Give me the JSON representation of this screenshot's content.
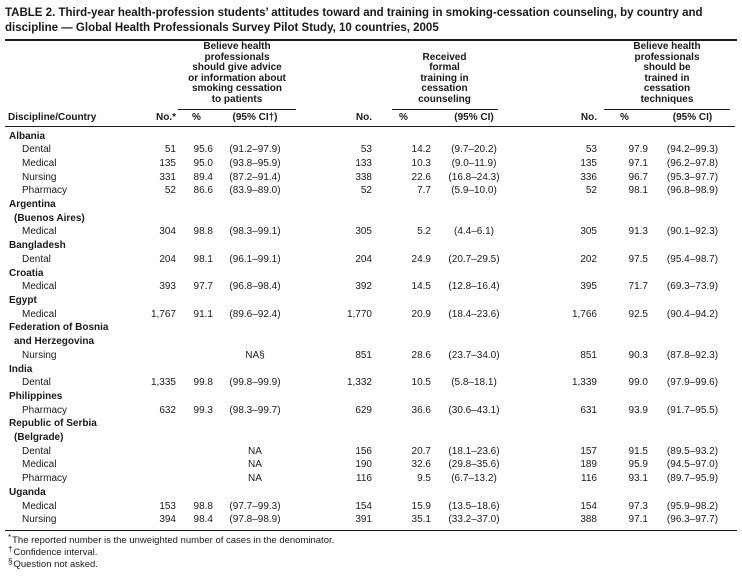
{
  "title": "TABLE 2. Third-year health-profession students’ attitudes toward and training in smoking-cessation counseling, by country and\ndiscipline — Global Health Professionals Survey Pilot Study, 10 countries, 2005",
  "header": {
    "groups": [
      {
        "label": "Believe health\nprofessionals\nshould give advice\nor information about\nsmoking cessation\nto patients"
      },
      {
        "label": "Received\nformal\ntraining in\ncessation\ncounseling"
      },
      {
        "label": "Believe health\nprofessionals\nshould be\ntrained in\ncessation\ntechniques"
      }
    ],
    "labels": {
      "discipline_country": "Discipline/Country",
      "no_star": "No.*",
      "no": "No.",
      "pct": "%",
      "ci_dagger": "(95% CI†)",
      "ci": "(95% CI)"
    }
  },
  "rows": [
    {
      "type": "country",
      "label": "Albania"
    },
    {
      "type": "data",
      "label": "Dental",
      "cells": [
        "51",
        "95.6",
        "(91.2–97.9)",
        "53",
        "14.2",
        "(9.7–20.2)",
        "53",
        "97.9",
        "(94.2–99.3)"
      ]
    },
    {
      "type": "data",
      "label": "Medical",
      "cells": [
        "135",
        "95.0",
        "(93.8–95.9)",
        "133",
        "10.3",
        "(9.0–11.9)",
        "135",
        "97.1",
        "(96.2–97.8)"
      ]
    },
    {
      "type": "data",
      "label": "Nursing",
      "cells": [
        "331",
        "89.4",
        "(87.2–91.4)",
        "338",
        "22.6",
        "(16.8–24.3)",
        "336",
        "96.7",
        "(95.3–97.7)"
      ]
    },
    {
      "type": "data",
      "label": "Pharmacy",
      "cells": [
        "52",
        "86.6",
        "(83.9–89.0)",
        "52",
        "7.7",
        "(5.9–10.0)",
        "52",
        "98.1",
        "(96.8–98.9)"
      ]
    },
    {
      "type": "country",
      "label": "Argentina"
    },
    {
      "type": "country2",
      "label": "(Buenos Aires)"
    },
    {
      "type": "data",
      "label": "Medical",
      "cells": [
        "304",
        "98.8",
        "(98.3–99.1)",
        "305",
        "5.2",
        "(4.4–6.1)",
        "305",
        "91.3",
        "(90.1–92.3)"
      ]
    },
    {
      "type": "country",
      "label": "Bangladesh"
    },
    {
      "type": "data",
      "label": "Dental",
      "cells": [
        "204",
        "98.1",
        "(96.1–99.1)",
        "204",
        "24.9",
        "(20.7–29.5)",
        "202",
        "97.5",
        "(95.4–98.7)"
      ]
    },
    {
      "type": "country",
      "label": "Croatia"
    },
    {
      "type": "data",
      "label": "Medical",
      "cells": [
        "393",
        "97.7",
        "(96.8–98.4)",
        "392",
        "14.5",
        "(12.8–16.4)",
        "395",
        "71.7",
        "(69.3–73.9)"
      ]
    },
    {
      "type": "country",
      "label": "Egypt"
    },
    {
      "type": "data",
      "label": "Medical",
      "cells": [
        "1,767",
        "91.1",
        "(89.6–92.4)",
        "1,770",
        "20.9",
        "(18.4–23.6)",
        "1,766",
        "92.5",
        "(90.4–94.2)"
      ]
    },
    {
      "type": "country",
      "label": "Federation of Bosnia"
    },
    {
      "type": "country2",
      "label": "and Herzegovina"
    },
    {
      "type": "data",
      "label": "Nursing",
      "cells": [
        "",
        "",
        "NA§",
        "851",
        "28.6",
        "(23.7–34.0)",
        "851",
        "90.3",
        "(87.8–92.3)"
      ]
    },
    {
      "type": "country",
      "label": "India"
    },
    {
      "type": "data",
      "label": "Dental",
      "cells": [
        "1,335",
        "99.8",
        "(99.8–99.9)",
        "1,332",
        "10.5",
        "(5.8–18.1)",
        "1,339",
        "99.0",
        "(97.9–99.6)"
      ]
    },
    {
      "type": "country",
      "label": "Philippines"
    },
    {
      "type": "data",
      "label": "Pharmacy",
      "cells": [
        "632",
        "99.3",
        "(98.3–99.7)",
        "629",
        "36.6",
        "(30.6–43.1)",
        "631",
        "93.9",
        "(91.7–95.5)"
      ]
    },
    {
      "type": "country",
      "label": "Republic of Serbia"
    },
    {
      "type": "country2",
      "label": "(Belgrade)"
    },
    {
      "type": "data",
      "label": "Dental",
      "cells": [
        "",
        "",
        "NA",
        "156",
        "20.7",
        "(18.1–23.6)",
        "157",
        "91.5",
        "(89.5–93.2)"
      ]
    },
    {
      "type": "data",
      "label": "Medical",
      "cells": [
        "",
        "",
        "NA",
        "190",
        "32.6",
        "(29.8–35.6)",
        "189",
        "95.9",
        "(94.5–97.0)"
      ]
    },
    {
      "type": "data",
      "label": "Pharmacy",
      "cells": [
        "",
        "",
        "NA",
        "116",
        "9.5",
        "(6.7–13.2)",
        "116",
        "93.1",
        "(89.7–95.9)"
      ]
    },
    {
      "type": "country",
      "label": "Uganda"
    },
    {
      "type": "data",
      "label": "Medical",
      "cells": [
        "153",
        "98.8",
        "(97.7–99.3)",
        "154",
        "15.9",
        "(13.5–18.6)",
        "154",
        "97.3",
        "(95.9–98.2)"
      ]
    },
    {
      "type": "data",
      "label": "Nursing",
      "cells": [
        "394",
        "98.4",
        "(97.8–98.9)",
        "391",
        "35.1",
        "(33.2–37.0)",
        "388",
        "97.1",
        "(96.3–97.7)"
      ]
    }
  ],
  "footnotes": [
    {
      "marker": "*",
      "text": "The reported number is the unweighted number of cases in the denominator."
    },
    {
      "marker": "†",
      "text": "Confidence interval."
    },
    {
      "marker": "§",
      "text": "Question not asked."
    }
  ]
}
